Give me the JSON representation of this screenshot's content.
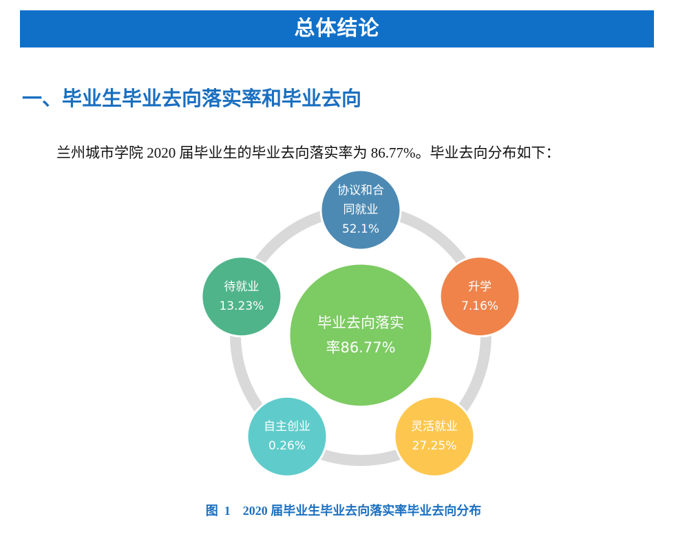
{
  "banner": {
    "title": "总体结论"
  },
  "section": {
    "heading": "一、毕业生毕业去向落实率和毕业去向"
  },
  "paragraph": "兰州城市学院 2020 届毕业生的毕业去向落实率为 86.77%。毕业去向分布如下：",
  "diagram": {
    "center": {
      "lines": [
        "毕业去向落实",
        "率86.77%"
      ],
      "color": "#7dcb63"
    },
    "ring_color": "#d9d9d9",
    "nodes": [
      {
        "lines": [
          "协议和合",
          "同就业",
          "52.1%"
        ],
        "color": "#4d8ab3"
      },
      {
        "lines": [
          "升学",
          "7.16%"
        ],
        "color": "#ef834a"
      },
      {
        "lines": [
          "灵活就业",
          "27.25%"
        ],
        "color": "#fdc74f"
      },
      {
        "lines": [
          "自主创业",
          "0.26%"
        ],
        "color": "#5fcccb"
      },
      {
        "lines": [
          "待就业",
          "13.23%"
        ],
        "color": "#4fb48a"
      }
    ]
  },
  "caption": "图  1    2020 届毕业生毕业去向落实率毕业去向分布"
}
